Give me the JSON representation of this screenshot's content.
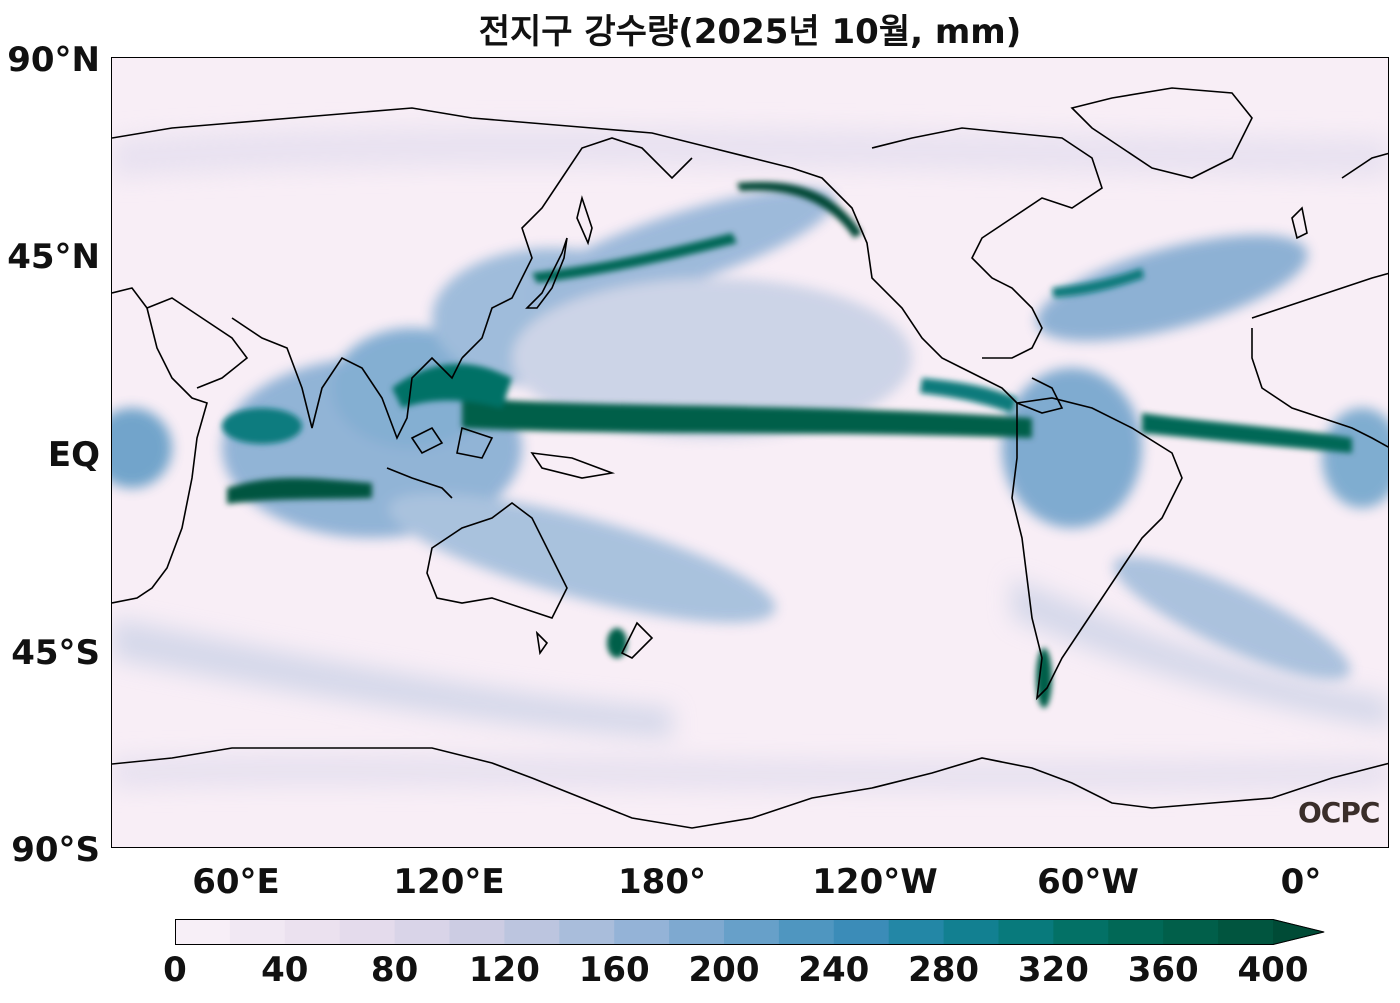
{
  "title": "전지구 강수량(2025년 10월, mm)",
  "lat_labels": [
    "90°N",
    "45°N",
    "EQ",
    "45°S",
    "90°S"
  ],
  "lon_labels": [
    "60°E",
    "120°E",
    "180°",
    "120°W",
    "60°W",
    "0°"
  ],
  "colorbar": {
    "tick_labels": [
      "0",
      "40",
      "80",
      "120",
      "160",
      "200",
      "240",
      "280",
      "320",
      "360",
      "400"
    ],
    "colors": [
      "#f7eff7",
      "#f1e8f3",
      "#ebe1ef",
      "#e4dbec",
      "#d9d4e8",
      "#ccccE3",
      "#bcc5df",
      "#a9bddb",
      "#94b3d7",
      "#7ea9d0",
      "#67a0c9",
      "#4f96c0",
      "#3b8cb8",
      "#2387a6",
      "#128091",
      "#087a7c",
      "#037166",
      "#016856",
      "#015f4a",
      "#01553f",
      "#004b36"
    ]
  },
  "logo": "OCPC",
  "colors": {
    "low": "#f8eef6",
    "high": "#014636",
    "coast": "#000000"
  }
}
